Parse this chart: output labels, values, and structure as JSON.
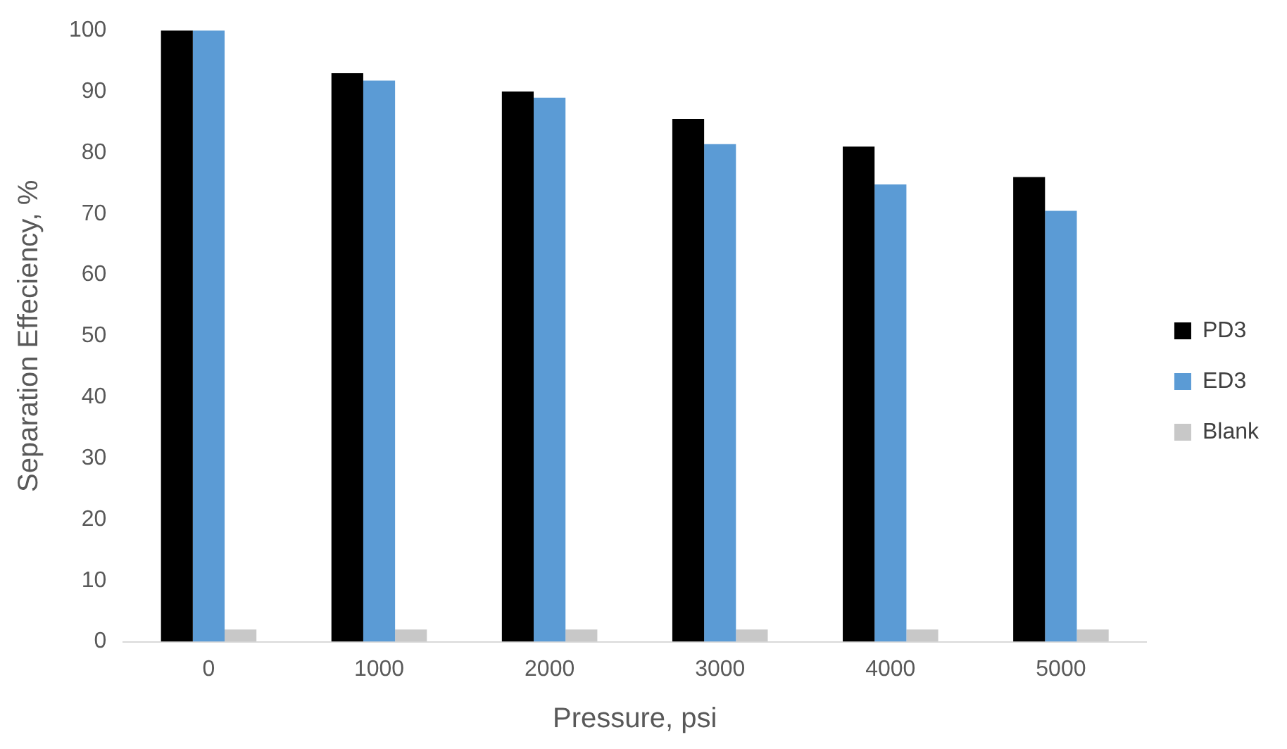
{
  "chart_data": {
    "type": "bar",
    "xlabel": "Pressure, psi",
    "ylabel": "Separation Effeciency, %",
    "categories": [
      "0",
      "1000",
      "2000",
      "3000",
      "4000",
      "5000"
    ],
    "series": [
      {
        "name": "PD3",
        "color": "#000000",
        "values": [
          100,
          93,
          90,
          85.5,
          81,
          76
        ]
      },
      {
        "name": "ED3",
        "color": "#5b9bd5",
        "values": [
          100,
          91.8,
          89,
          81.4,
          74.8,
          70.5
        ]
      },
      {
        "name": "Blank",
        "color": "#c8c8c8",
        "values": [
          2,
          2,
          2,
          2,
          2,
          2
        ]
      }
    ],
    "ylim": [
      0,
      100
    ],
    "yticks": [
      0,
      10,
      20,
      30,
      40,
      50,
      60,
      70,
      80,
      90,
      100
    ],
    "grid": false,
    "legend": "right"
  }
}
